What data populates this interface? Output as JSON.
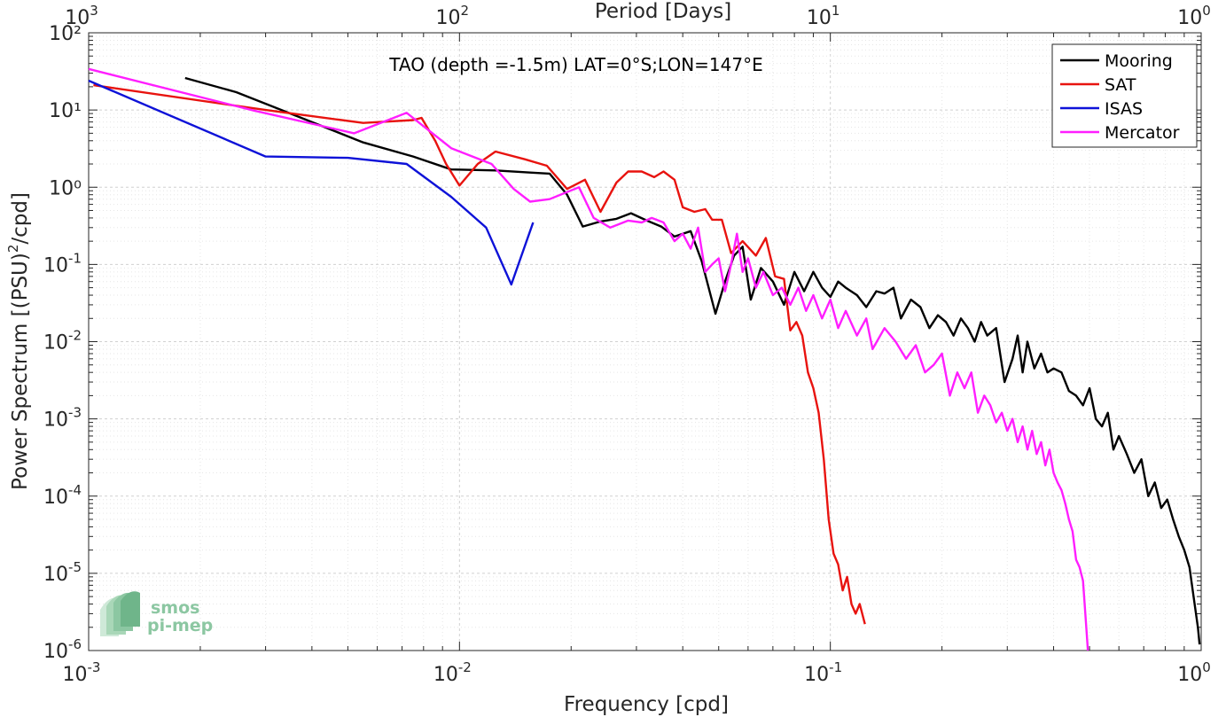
{
  "chart_data": {
    "type": "line",
    "title": "TAO (depth =-1.5m) LAT=0°S;LON=147°E",
    "xlabel": "Frequency [cpd]",
    "ylabel": "Power Spectrum [(PSU)²/cpd]",
    "ylabel_parts": {
      "before": "Power Spectrum [(PSU)",
      "sup": "2",
      "after": "/cpd]"
    },
    "top_xlabel": "Period [Days]",
    "xscale": "log",
    "yscale": "log",
    "xlim": [
      0.001,
      1
    ],
    "ylim": [
      1e-06,
      100
    ],
    "grid": true,
    "legend_position": "top-right",
    "x_ticks": [
      {
        "value": 0.001,
        "base": "10",
        "exp": "-3"
      },
      {
        "value": 0.01,
        "base": "10",
        "exp": "-2"
      },
      {
        "value": 0.1,
        "base": "10",
        "exp": "-1"
      },
      {
        "value": 1,
        "base": "10",
        "exp": "0"
      }
    ],
    "y_ticks": [
      {
        "value": 1e-06,
        "base": "10",
        "exp": "-6"
      },
      {
        "value": 1e-05,
        "base": "10",
        "exp": "-5"
      },
      {
        "value": 0.0001,
        "base": "10",
        "exp": "-4"
      },
      {
        "value": 0.001,
        "base": "10",
        "exp": "-3"
      },
      {
        "value": 0.01,
        "base": "10",
        "exp": "-2"
      },
      {
        "value": 0.1,
        "base": "10",
        "exp": "-1"
      },
      {
        "value": 1,
        "base": "",
        "exp": "",
        "text": "10⁰"
      },
      {
        "value": 10,
        "base": "",
        "exp": "",
        "text": "10¹"
      },
      {
        "value": 100,
        "base": "",
        "exp": "",
        "text": "10²"
      }
    ],
    "top_ticks": [
      {
        "value": 0.001,
        "base": "10",
        "exp": "3"
      },
      {
        "value": 0.01,
        "base": "10",
        "exp": "2"
      },
      {
        "value": 0.1,
        "base": "10",
        "exp": "1"
      },
      {
        "value": 1,
        "base": "10",
        "exp": "0"
      }
    ],
    "series": [
      {
        "name": "Mooring",
        "color": "#000000",
        "points": [
          [
            0.00182,
            26
          ],
          [
            0.0025,
            17
          ],
          [
            0.0035,
            9
          ],
          [
            0.0055,
            3.8
          ],
          [
            0.0075,
            2.5
          ],
          [
            0.0095,
            1.7
          ],
          [
            0.0125,
            1.65
          ],
          [
            0.0155,
            1.55
          ],
          [
            0.0175,
            1.5
          ],
          [
            0.0195,
            0.8
          ],
          [
            0.0215,
            0.31
          ],
          [
            0.024,
            0.36
          ],
          [
            0.0265,
            0.39
          ],
          [
            0.029,
            0.46
          ],
          [
            0.032,
            0.37
          ],
          [
            0.035,
            0.31
          ],
          [
            0.038,
            0.23
          ],
          [
            0.042,
            0.27
          ],
          [
            0.045,
            0.11
          ],
          [
            0.049,
            0.023
          ],
          [
            0.052,
            0.06
          ],
          [
            0.055,
            0.13
          ],
          [
            0.058,
            0.17
          ],
          [
            0.061,
            0.035
          ],
          [
            0.065,
            0.09
          ],
          [
            0.07,
            0.06
          ],
          [
            0.075,
            0.03
          ],
          [
            0.08,
            0.08
          ],
          [
            0.085,
            0.045
          ],
          [
            0.09,
            0.08
          ],
          [
            0.095,
            0.05
          ],
          [
            0.1,
            0.038
          ],
          [
            0.105,
            0.06
          ],
          [
            0.11,
            0.05
          ],
          [
            0.118,
            0.04
          ],
          [
            0.125,
            0.028
          ],
          [
            0.133,
            0.045
          ],
          [
            0.14,
            0.042
          ],
          [
            0.148,
            0.05
          ],
          [
            0.155,
            0.02
          ],
          [
            0.165,
            0.035
          ],
          [
            0.175,
            0.028
          ],
          [
            0.185,
            0.015
          ],
          [
            0.195,
            0.022
          ],
          [
            0.205,
            0.018
          ],
          [
            0.215,
            0.012
          ],
          [
            0.225,
            0.02
          ],
          [
            0.235,
            0.015
          ],
          [
            0.245,
            0.01
          ],
          [
            0.255,
            0.018
          ],
          [
            0.265,
            0.012
          ],
          [
            0.28,
            0.015
          ],
          [
            0.295,
            0.003
          ],
          [
            0.31,
            0.006
          ],
          [
            0.32,
            0.012
          ],
          [
            0.33,
            0.004
          ],
          [
            0.34,
            0.01
          ],
          [
            0.355,
            0.0045
          ],
          [
            0.37,
            0.007
          ],
          [
            0.385,
            0.004
          ],
          [
            0.4,
            0.0045
          ],
          [
            0.42,
            0.004
          ],
          [
            0.44,
            0.0023
          ],
          [
            0.46,
            0.002
          ],
          [
            0.48,
            0.0015
          ],
          [
            0.5,
            0.0025
          ],
          [
            0.52,
            0.001
          ],
          [
            0.54,
            0.0008
          ],
          [
            0.56,
            0.0012
          ],
          [
            0.58,
            0.0004
          ],
          [
            0.6,
            0.0006
          ],
          [
            0.63,
            0.00035
          ],
          [
            0.66,
            0.0002
          ],
          [
            0.69,
            0.0003
          ],
          [
            0.72,
            0.0001
          ],
          [
            0.75,
            0.00015
          ],
          [
            0.78,
            7e-05
          ],
          [
            0.81,
            9e-05
          ],
          [
            0.84,
            5e-05
          ],
          [
            0.87,
            3e-05
          ],
          [
            0.9,
            2e-05
          ],
          [
            0.93,
            1.2e-05
          ],
          [
            0.96,
            4e-06
          ],
          [
            0.98,
            2e-06
          ],
          [
            0.99,
            1.2e-06
          ]
        ]
      },
      {
        "name": "SAT",
        "color": "#e8130f",
        "points": [
          [
            0.00103,
            21
          ],
          [
            0.003,
            10
          ],
          [
            0.0055,
            6.8
          ],
          [
            0.0075,
            7.4
          ],
          [
            0.0079,
            7.9
          ],
          [
            0.0086,
            4
          ],
          [
            0.0092,
            2
          ],
          [
            0.01,
            1.05
          ],
          [
            0.0112,
            2
          ],
          [
            0.0125,
            2.9
          ],
          [
            0.015,
            2.3
          ],
          [
            0.0172,
            1.9
          ],
          [
            0.0195,
            0.95
          ],
          [
            0.0218,
            1.25
          ],
          [
            0.024,
            0.48
          ],
          [
            0.0265,
            1.15
          ],
          [
            0.0285,
            1.6
          ],
          [
            0.031,
            1.6
          ],
          [
            0.0335,
            1.35
          ],
          [
            0.0355,
            1.6
          ],
          [
            0.038,
            1.25
          ],
          [
            0.04,
            0.55
          ],
          [
            0.043,
            0.48
          ],
          [
            0.046,
            0.52
          ],
          [
            0.048,
            0.38
          ],
          [
            0.051,
            0.38
          ],
          [
            0.054,
            0.14
          ],
          [
            0.058,
            0.2
          ],
          [
            0.063,
            0.13
          ],
          [
            0.067,
            0.22
          ],
          [
            0.071,
            0.07
          ],
          [
            0.075,
            0.065
          ],
          [
            0.078,
            0.014
          ],
          [
            0.081,
            0.018
          ],
          [
            0.084,
            0.012
          ],
          [
            0.087,
            0.004
          ],
          [
            0.09,
            0.0025
          ],
          [
            0.093,
            0.0012
          ],
          [
            0.096,
            0.0003
          ],
          [
            0.099,
            5e-05
          ],
          [
            0.102,
            1.8e-05
          ],
          [
            0.105,
            1.3e-05
          ],
          [
            0.108,
            6e-06
          ],
          [
            0.111,
            9e-06
          ],
          [
            0.114,
            4e-06
          ],
          [
            0.117,
            3e-06
          ],
          [
            0.12,
            4e-06
          ],
          [
            0.124,
            2.2e-06
          ]
        ]
      },
      {
        "name": "ISAS",
        "color": "#0e12d8",
        "points": [
          [
            0.001,
            24
          ],
          [
            0.003,
            2.5
          ],
          [
            0.005,
            2.4
          ],
          [
            0.0072,
            2
          ],
          [
            0.0095,
            0.75
          ],
          [
            0.0118,
            0.3
          ],
          [
            0.0138,
            0.055
          ],
          [
            0.0158,
            0.35
          ]
        ]
      },
      {
        "name": "Mercator",
        "color": "#ff1eff",
        "points": [
          [
            0.001,
            34
          ],
          [
            0.0028,
            9.8
          ],
          [
            0.0052,
            5
          ],
          [
            0.0072,
            9.2
          ],
          [
            0.0095,
            3.2
          ],
          [
            0.0122,
            2
          ],
          [
            0.014,
            0.95
          ],
          [
            0.0155,
            0.65
          ],
          [
            0.0175,
            0.7
          ],
          [
            0.021,
            1
          ],
          [
            0.023,
            0.4
          ],
          [
            0.0255,
            0.3
          ],
          [
            0.0285,
            0.37
          ],
          [
            0.031,
            0.35
          ],
          [
            0.033,
            0.4
          ],
          [
            0.0355,
            0.35
          ],
          [
            0.038,
            0.2
          ],
          [
            0.04,
            0.25
          ],
          [
            0.042,
            0.16
          ],
          [
            0.044,
            0.3
          ],
          [
            0.046,
            0.08
          ],
          [
            0.048,
            0.1
          ],
          [
            0.05,
            0.12
          ],
          [
            0.052,
            0.045
          ],
          [
            0.054,
            0.1
          ],
          [
            0.056,
            0.25
          ],
          [
            0.058,
            0.08
          ],
          [
            0.06,
            0.12
          ],
          [
            0.063,
            0.05
          ],
          [
            0.066,
            0.08
          ],
          [
            0.07,
            0.04
          ],
          [
            0.074,
            0.05
          ],
          [
            0.078,
            0.03
          ],
          [
            0.082,
            0.05
          ],
          [
            0.086,
            0.025
          ],
          [
            0.09,
            0.04
          ],
          [
            0.095,
            0.02
          ],
          [
            0.1,
            0.035
          ],
          [
            0.105,
            0.015
          ],
          [
            0.11,
            0.025
          ],
          [
            0.118,
            0.012
          ],
          [
            0.125,
            0.02
          ],
          [
            0.13,
            0.008
          ],
          [
            0.14,
            0.015
          ],
          [
            0.15,
            0.01
          ],
          [
            0.16,
            0.006
          ],
          [
            0.17,
            0.009
          ],
          [
            0.18,
            0.004
          ],
          [
            0.19,
            0.005
          ],
          [
            0.2,
            0.007
          ],
          [
            0.21,
            0.002
          ],
          [
            0.22,
            0.004
          ],
          [
            0.23,
            0.0025
          ],
          [
            0.24,
            0.004
          ],
          [
            0.25,
            0.0012
          ],
          [
            0.26,
            0.002
          ],
          [
            0.27,
            0.0015
          ],
          [
            0.28,
            0.0009
          ],
          [
            0.29,
            0.0012
          ],
          [
            0.3,
            0.0007
          ],
          [
            0.31,
            0.001
          ],
          [
            0.32,
            0.0005
          ],
          [
            0.33,
            0.0008
          ],
          [
            0.34,
            0.0004
          ],
          [
            0.35,
            0.0007
          ],
          [
            0.36,
            0.00035
          ],
          [
            0.37,
            0.0005
          ],
          [
            0.38,
            0.00025
          ],
          [
            0.39,
            0.0004
          ],
          [
            0.4,
            0.0002
          ],
          [
            0.41,
            0.00015
          ],
          [
            0.42,
            0.00012
          ],
          [
            0.43,
            8e-05
          ],
          [
            0.44,
            5e-05
          ],
          [
            0.45,
            3.5e-05
          ],
          [
            0.46,
            1.5e-05
          ],
          [
            0.47,
            1.2e-05
          ],
          [
            0.48,
            8e-06
          ],
          [
            0.49,
            2e-06
          ],
          [
            0.495,
            1e-06
          ]
        ]
      }
    ]
  },
  "logo": {
    "line1": "smos",
    "line2": "pi-mep"
  }
}
